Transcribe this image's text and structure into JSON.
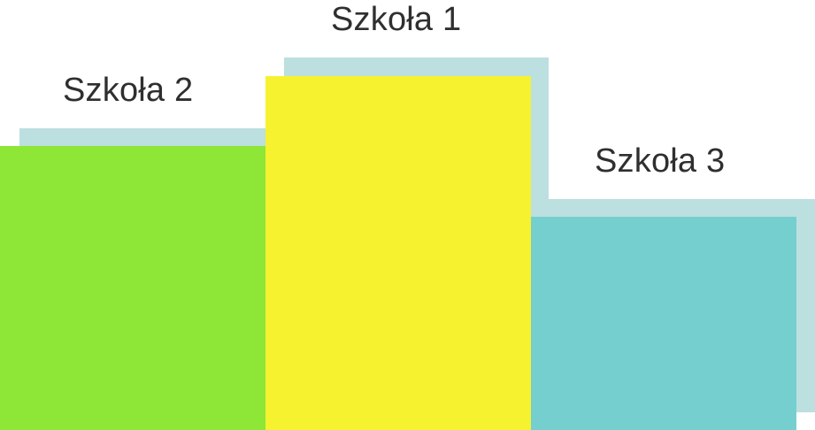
{
  "podium": {
    "places": [
      {
        "label": "Szkoła 2",
        "color": "#8ee636",
        "shadow_color": "#bcdfe0"
      },
      {
        "label": "Szkoła 1",
        "color": "#f6f230",
        "shadow_color": "#bcdfe0"
      },
      {
        "label": "Szkoła 3",
        "color": "#76cfcf",
        "shadow_color": "#bcdfe0"
      }
    ]
  }
}
